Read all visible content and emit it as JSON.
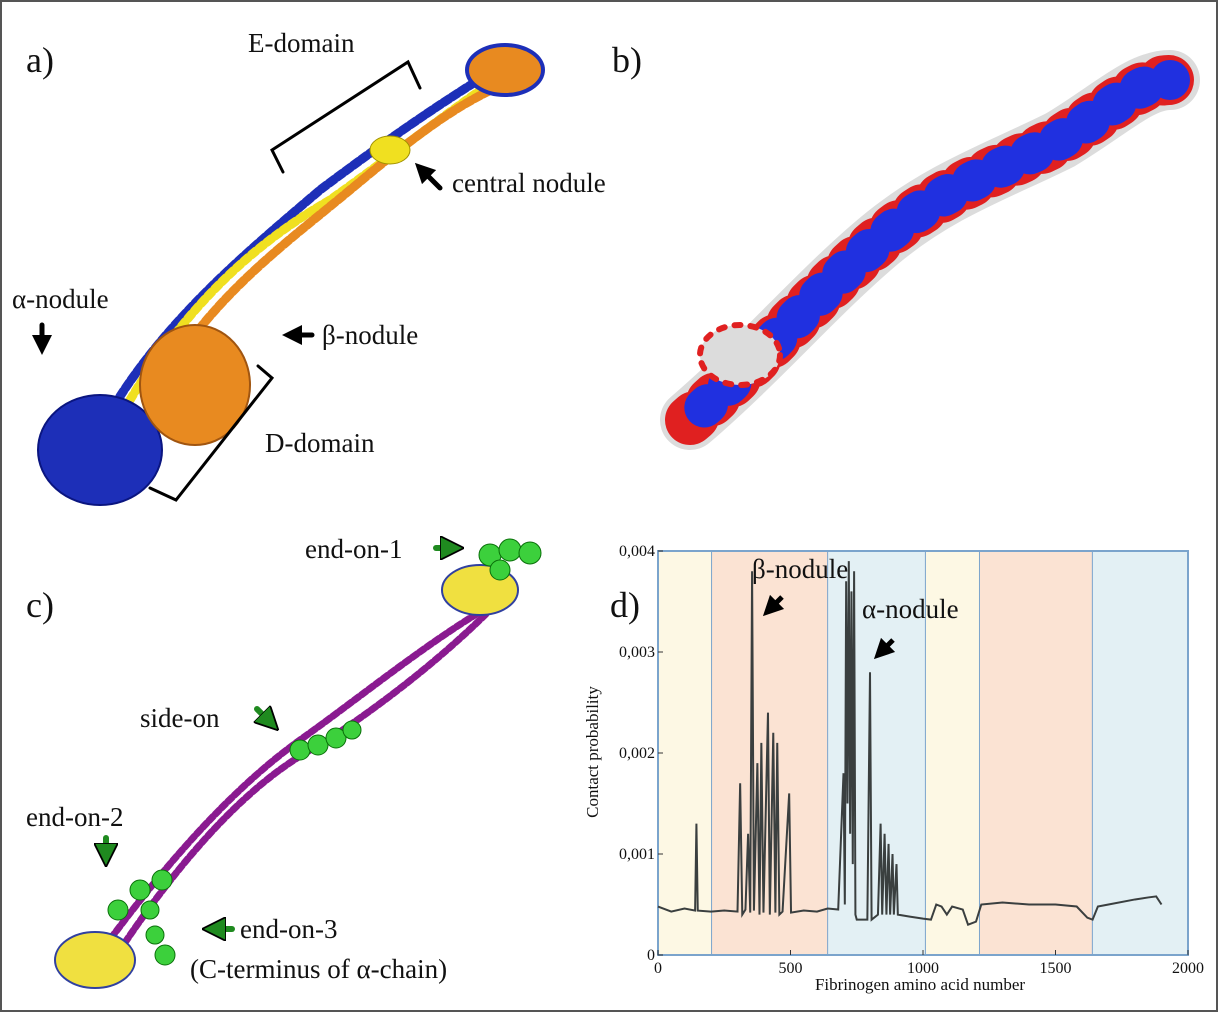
{
  "panels": [
    {
      "label": "a)",
      "annotations": [
        "E-domain",
        "central nodule",
        "α-nodule",
        "β-nodule",
        "D-domain"
      ]
    },
    {
      "label": "b)",
      "annotations": []
    },
    {
      "label": "c)",
      "annotations": [
        "end-on-1",
        "side-on",
        "end-on-2",
        "end-on-3",
        "(C-terminus of α-chain)"
      ]
    }
  ],
  "chart_data": {
    "type": "line",
    "panel_label": "d)",
    "xlabel": "Fibrinogen amino acid number",
    "ylabel": "Contact probability",
    "annotations": [
      "β-nodule",
      "α-nodule"
    ],
    "xlim": [
      0,
      2000
    ],
    "xticks": [
      0,
      500,
      1000,
      1500,
      2000
    ],
    "ylim": [
      0,
      0.004
    ],
    "yticks": [
      0,
      {
        "value": 0.001,
        "label": "0,001"
      },
      {
        "value": 0.002,
        "label": "0,002"
      },
      {
        "value": 0.003,
        "label": "0,003"
      },
      {
        "value": 0.004,
        "label": "0,004"
      }
    ],
    "color": "#3a3f3f",
    "regions": [
      {
        "start": 0,
        "end": 204,
        "color": "#fdf8e4"
      },
      {
        "start": 204,
        "end": 642,
        "color": "#fbe3d3"
      },
      {
        "start": 642,
        "end": 1011,
        "color": "#e3f0f4"
      },
      {
        "start": 1011,
        "end": 1215,
        "color": "#fdf8e4"
      },
      {
        "start": 1215,
        "end": 1641,
        "color": "#fbe3d3"
      },
      {
        "start": 1641,
        "end": 2000,
        "color": "#e3f0f4"
      }
    ],
    "x": [
      0,
      50,
      100,
      140,
      145,
      150,
      200,
      250,
      300,
      310,
      318,
      330,
      340,
      348,
      355,
      362,
      375,
      383,
      390,
      398,
      415,
      422,
      435,
      443,
      450,
      458,
      470,
      495,
      502,
      550,
      600,
      640,
      680,
      700,
      705,
      710,
      715,
      720,
      725,
      730,
      735,
      740,
      745,
      750,
      790,
      800,
      806,
      830,
      840,
      846,
      855,
      862,
      870,
      876,
      885,
      890,
      900,
      905,
      950,
      1000,
      1030,
      1050,
      1070,
      1090,
      1110,
      1150,
      1170,
      1200,
      1220,
      1300,
      1400,
      1500,
      1580,
      1620,
      1640,
      1660,
      1700,
      1800,
      1850,
      1880,
      1900
    ],
    "values": [
      0.00048,
      0.00043,
      0.00046,
      0.00044,
      0.0013,
      0.00044,
      0.00043,
      0.00044,
      0.00043,
      0.0017,
      0.0004,
      0.00045,
      0.0012,
      0.00042,
      0.0038,
      0.00044,
      0.0019,
      0.0004,
      0.0021,
      0.00042,
      0.0024,
      0.0004,
      0.0022,
      0.00042,
      0.0021,
      0.0004,
      0.00043,
      0.0016,
      0.00042,
      0.00044,
      0.00043,
      0.00046,
      0.00045,
      0.0018,
      0.0005,
      0.0037,
      0.0015,
      0.0039,
      0.0012,
      0.0036,
      0.0009,
      0.0038,
      0.0004,
      0.00035,
      0.00035,
      0.0028,
      0.00035,
      0.0004,
      0.0013,
      0.0004,
      0.0012,
      0.0004,
      0.0011,
      0.0004,
      0.001,
      0.0004,
      0.0009,
      0.0004,
      0.00038,
      0.00036,
      0.00035,
      0.0005,
      0.00048,
      0.0004,
      0.00048,
      0.00045,
      0.0003,
      0.00033,
      0.0005,
      0.00052,
      0.0005,
      0.0005,
      0.00048,
      0.00037,
      0.00035,
      0.00048,
      0.0005,
      0.00055,
      0.00057,
      0.00058,
      0.0005
    ]
  }
}
